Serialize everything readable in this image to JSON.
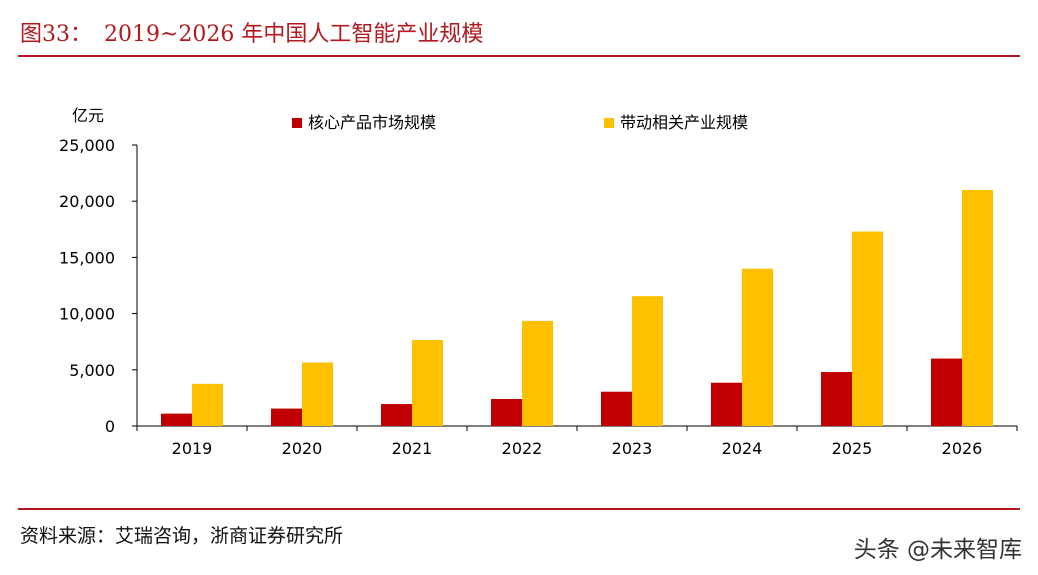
{
  "page": {
    "title_prefix": "图33：",
    "title_text": "2019~2026 年中国人工智能产业规模",
    "source": "资料来源：艾瑞咨询，浙商证券研究所",
    "watermark": "头条 @未来智库"
  },
  "colors": {
    "accent": "#b3191e",
    "series_core": "#c00000",
    "series_related": "#ffc000"
  },
  "chart_data": {
    "type": "bar",
    "title": "2019~2026 年中国人工智能产业规模",
    "ylabel": "亿元",
    "xlabel": "",
    "ylim": [
      0,
      25000
    ],
    "yticks": [
      0,
      5000,
      10000,
      15000,
      20000,
      25000
    ],
    "ytick_labels": [
      "0",
      "5,000",
      "10,000",
      "15,000",
      "20,000",
      "25,000"
    ],
    "categories": [
      "2019",
      "2020",
      "2021",
      "2022",
      "2023",
      "2024",
      "2025",
      "2026"
    ],
    "series": [
      {
        "name": "核心产品市场规模",
        "color": "#c00000",
        "values": [
          1100,
          1550,
          1950,
          2400,
          3050,
          3850,
          4800,
          6000
        ]
      },
      {
        "name": "带动相关产业规模",
        "color": "#ffc000",
        "values": [
          3750,
          5650,
          7650,
          9350,
          11550,
          14000,
          17300,
          21000
        ]
      }
    ],
    "grid": false,
    "legend": "top"
  }
}
